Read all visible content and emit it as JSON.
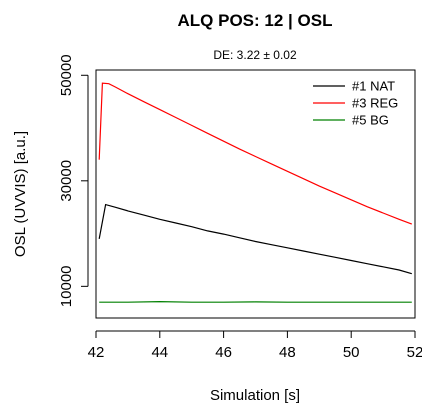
{
  "chart_data": {
    "type": "line",
    "title": "ALQ POS: 12 | OSL",
    "subtitle": "DE: 3.22 ± 0.02",
    "xlabel": "Simulation [s]",
    "ylabel": "OSL (UVVIS) [a.u.]",
    "xlim": [
      42,
      52
    ],
    "ylim": [
      4000,
      51000
    ],
    "x_ticks": [
      42,
      44,
      46,
      48,
      50,
      52
    ],
    "y_ticks": [
      10000,
      30000,
      50000
    ],
    "legend_position": "top-right",
    "grid": false,
    "series": [
      {
        "name": "#1 NAT",
        "color": "#000000",
        "x": [
          42.1,
          42.3,
          42.6,
          43.0,
          43.5,
          44.0,
          44.5,
          45.0,
          45.5,
          46.0,
          46.5,
          47.0,
          47.5,
          48.0,
          48.5,
          49.0,
          49.5,
          50.0,
          50.5,
          51.0,
          51.5,
          51.9
        ],
        "y": [
          19000,
          25500,
          25000,
          24300,
          23500,
          22700,
          22000,
          21300,
          20500,
          19900,
          19200,
          18500,
          17900,
          17300,
          16700,
          16100,
          15500,
          14900,
          14300,
          13700,
          13100,
          12400
        ]
      },
      {
        "name": "#3 REG",
        "color": "#ff0000",
        "x": [
          42.1,
          42.2,
          42.4,
          42.6,
          43.0,
          43.5,
          44.0,
          44.5,
          45.0,
          45.5,
          46.0,
          46.5,
          47.0,
          47.5,
          48.0,
          48.5,
          49.0,
          49.5,
          50.0,
          50.5,
          51.0,
          51.5,
          51.9
        ],
        "y": [
          34000,
          48500,
          48400,
          47800,
          46500,
          45000,
          43500,
          42000,
          40500,
          39000,
          37500,
          36000,
          34600,
          33200,
          31800,
          30400,
          29000,
          27700,
          26400,
          25100,
          23900,
          22700,
          21800
        ]
      },
      {
        "name": "#5 BG",
        "color": "#008000",
        "x": [
          42.1,
          43.0,
          44.0,
          45.0,
          46.0,
          47.0,
          48.0,
          49.0,
          50.0,
          51.0,
          51.9
        ],
        "y": [
          7000,
          7000,
          7100,
          7000,
          7000,
          7050,
          7000,
          7000,
          7000,
          7000,
          7000
        ]
      }
    ]
  }
}
